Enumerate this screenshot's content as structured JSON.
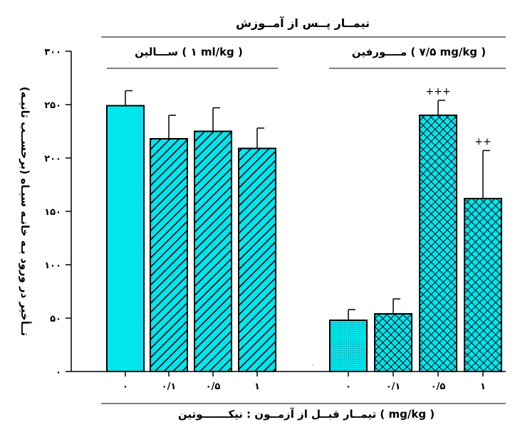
{
  "chart_data": {
    "type": "bar",
    "title": "تیمــار پــس از آمــوزش",
    "xlabel": "تیمــار قبــل از آزمــون : نیکـــــــوتین ( mg/kg )",
    "ylabel": "تــأخیر در ورود بـه خانـه سیـاه (برحســب ثانیـه)",
    "ylim": [
      0,
      300
    ],
    "yticks": [
      "۰",
      "۵۰",
      "۱۰۰",
      "۱۵۰",
      "۲۰۰",
      "۲۵۰",
      "۳۰۰"
    ],
    "ytick_values": [
      0,
      50,
      100,
      150,
      200,
      250,
      300
    ],
    "groups": [
      {
        "label": "ســـالین ( ۱ ml/kg )",
        "categories": [
          "۰",
          "۰/۱",
          "۰/۵",
          "۱"
        ],
        "values": [
          249,
          218,
          225,
          209
        ],
        "errors": [
          14,
          22,
          22,
          19
        ],
        "annotations": [
          "",
          "",
          "",
          ""
        ],
        "fills": [
          "solid",
          "diag",
          "diag",
          "diag"
        ]
      },
      {
        "label": "مــــورفین ( ۷/۵ mg/kg )",
        "categories": [
          "۰",
          "۰/۱",
          "۰/۵",
          "۱"
        ],
        "values": [
          48,
          54,
          240,
          162
        ],
        "errors": [
          10,
          14,
          14,
          45
        ],
        "annotations": [
          "",
          "",
          "+++",
          "++"
        ],
        "fills": [
          "dots",
          "cross",
          "cross",
          "cross"
        ]
      }
    ],
    "colors": {
      "bar": "#00e5ee",
      "outline": "#000000"
    },
    "grid": false
  }
}
